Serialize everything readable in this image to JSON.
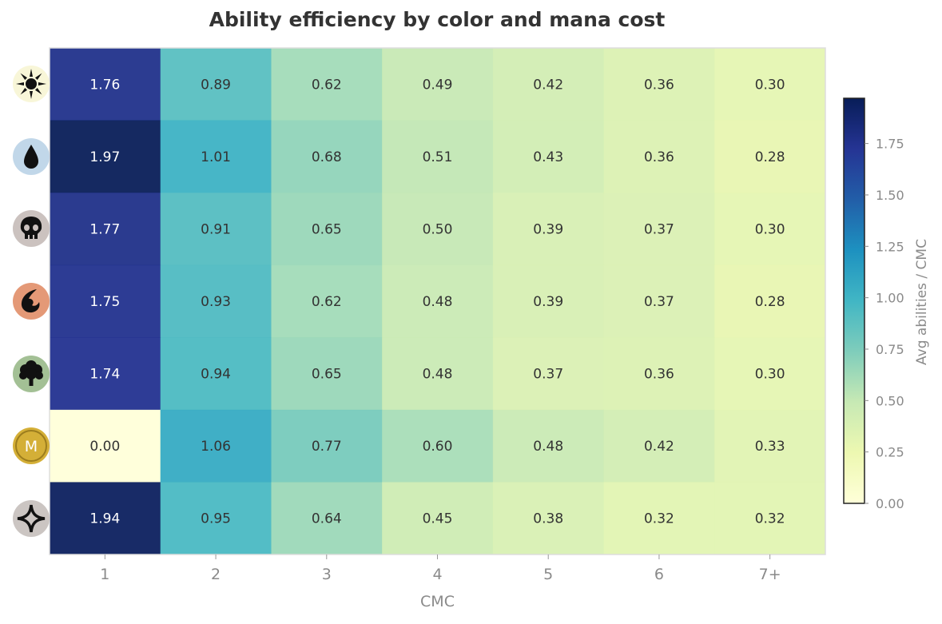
{
  "chart_data": {
    "type": "heatmap",
    "title": "Ability efficiency by color and mana cost",
    "xlabel": "CMC",
    "colorbar_label": "Avg abilities / CMC",
    "x_categories": [
      "1",
      "2",
      "3",
      "4",
      "5",
      "6",
      "7+"
    ],
    "rows": [
      {
        "icon": "white-sun-icon",
        "color": "#f8f6d8",
        "values": [
          1.76,
          0.89,
          0.62,
          0.49,
          0.42,
          0.36,
          0.3
        ]
      },
      {
        "icon": "blue-drop-icon",
        "color": "#c1d7e9",
        "values": [
          1.97,
          1.01,
          0.68,
          0.51,
          0.43,
          0.36,
          0.28
        ]
      },
      {
        "icon": "black-skull-icon",
        "color": "#cbc2bf",
        "values": [
          1.77,
          0.91,
          0.65,
          0.5,
          0.39,
          0.37,
          0.3
        ]
      },
      {
        "icon": "red-fire-icon",
        "color": "#e49977",
        "values": [
          1.75,
          0.93,
          0.62,
          0.48,
          0.39,
          0.37,
          0.28
        ]
      },
      {
        "icon": "green-tree-icon",
        "color": "#a3c095",
        "values": [
          1.74,
          0.94,
          0.65,
          0.48,
          0.37,
          0.36,
          0.3
        ]
      },
      {
        "icon": "multicolor-m-icon",
        "color": "#d4af37",
        "icon_text": "M",
        "values": [
          0.0,
          1.06,
          0.77,
          0.6,
          0.48,
          0.42,
          0.33
        ]
      },
      {
        "icon": "colorless-diamond-icon",
        "color": "#cbc5c2",
        "values": [
          1.94,
          0.95,
          0.64,
          0.45,
          0.38,
          0.32,
          0.32
        ]
      }
    ],
    "colorbar_ticks": [
      "0.00",
      "0.25",
      "0.50",
      "0.75",
      "1.00",
      "1.25",
      "1.50",
      "1.75"
    ],
    "color_range": [
      0,
      1.97
    ],
    "colormap": "YlGnBu"
  }
}
